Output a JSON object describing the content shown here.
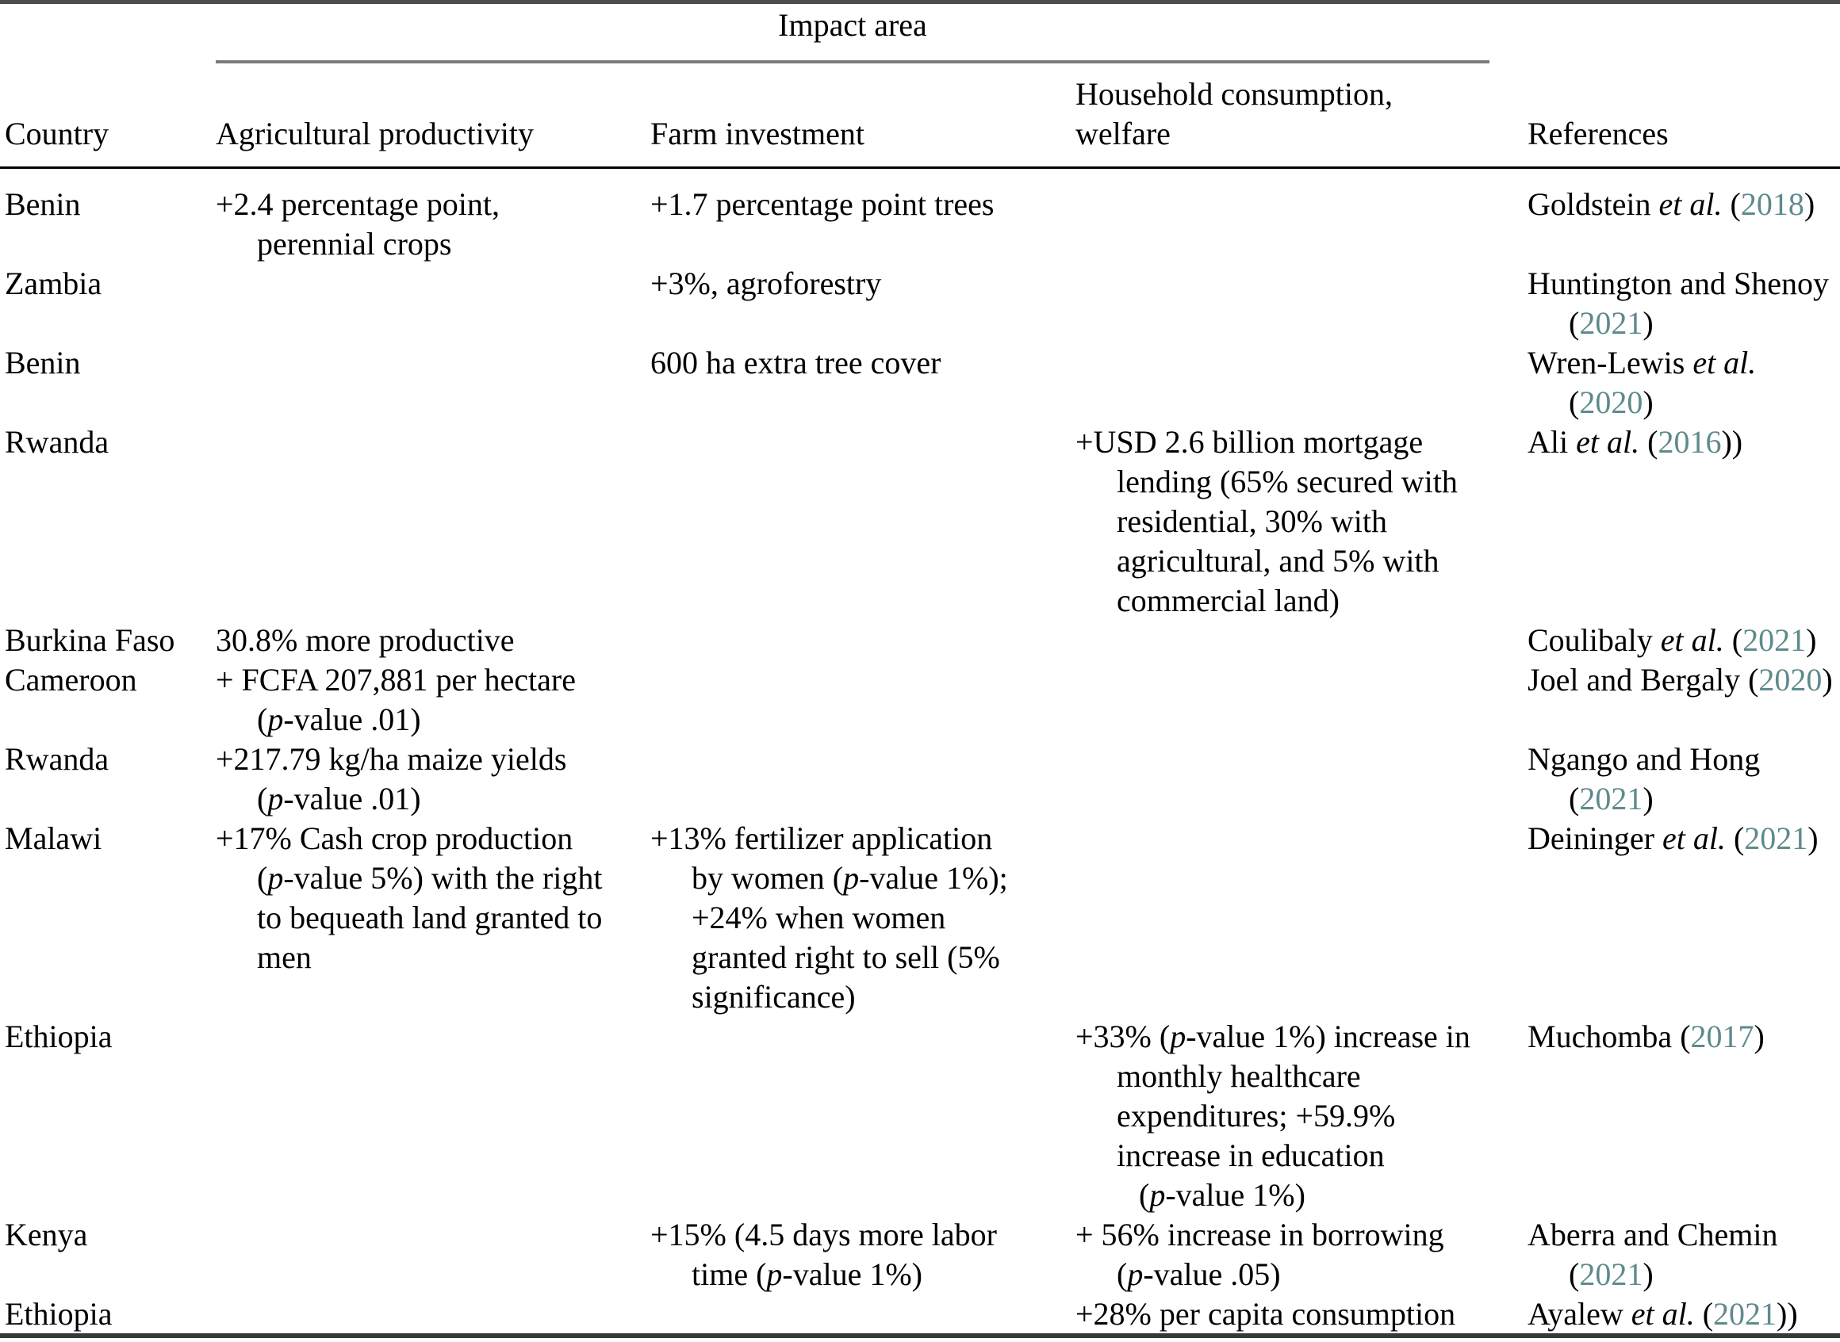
{
  "table": {
    "spanner_label": "Impact area",
    "year_link_color": "#5e8a8d",
    "columns": {
      "country": "Country",
      "agricultural_productivity": "Agricultural productivity",
      "farm_investment": "Farm investment",
      "household_consumption_welfare": "Household consumption,\nwelfare",
      "references": "References"
    },
    "rows": [
      {
        "country": "Benin",
        "agricultural_productivity": [
          {
            "ind": 0,
            "seg": [
              {
                "t": "+2.4 percentage point,"
              }
            ]
          },
          {
            "ind": 1,
            "seg": [
              {
                "t": "perennial crops"
              }
            ]
          }
        ],
        "farm_investment": [
          {
            "ind": 0,
            "seg": [
              {
                "t": "+1.7 percentage point trees"
              }
            ]
          }
        ],
        "household_consumption_welfare": [],
        "references": [
          {
            "ind": 0,
            "seg": [
              {
                "t": "Goldstein "
              },
              {
                "t": "et al.",
                "s": "i"
              },
              {
                "t": " ("
              },
              {
                "t": "2018",
                "s": "y"
              },
              {
                "t": ")"
              }
            ]
          }
        ]
      },
      {
        "country": "Zambia",
        "agricultural_productivity": [],
        "farm_investment": [
          {
            "ind": 0,
            "seg": [
              {
                "t": "+3%, agroforestry"
              }
            ]
          }
        ],
        "household_consumption_welfare": [],
        "references": [
          {
            "ind": 0,
            "seg": [
              {
                "t": "Huntington and Shenoy"
              }
            ]
          },
          {
            "ind": 1,
            "seg": [
              {
                "t": "("
              },
              {
                "t": "2021",
                "s": "y"
              },
              {
                "t": ")"
              }
            ]
          }
        ]
      },
      {
        "country": "Benin",
        "agricultural_productivity": [],
        "farm_investment": [
          {
            "ind": 0,
            "seg": [
              {
                "t": "600 ha extra tree cover"
              }
            ]
          }
        ],
        "household_consumption_welfare": [],
        "references": [
          {
            "ind": 0,
            "seg": [
              {
                "t": "Wren-Lewis "
              },
              {
                "t": "et al.",
                "s": "i"
              }
            ]
          },
          {
            "ind": 1,
            "seg": [
              {
                "t": "("
              },
              {
                "t": "2020",
                "s": "y"
              },
              {
                "t": ")"
              }
            ]
          }
        ]
      },
      {
        "country": "Rwanda",
        "agricultural_productivity": [],
        "farm_investment": [],
        "household_consumption_welfare": [
          {
            "ind": 0,
            "seg": [
              {
                "t": "+USD 2.6 billion mortgage"
              }
            ]
          },
          {
            "ind": 1,
            "seg": [
              {
                "t": "lending (65% secured with"
              }
            ]
          },
          {
            "ind": 1,
            "seg": [
              {
                "t": "residential, 30% with"
              }
            ]
          },
          {
            "ind": 1,
            "seg": [
              {
                "t": "agricultural, and 5% with"
              }
            ]
          },
          {
            "ind": 1,
            "seg": [
              {
                "t": "commercial land)"
              }
            ]
          }
        ],
        "references": [
          {
            "ind": 0,
            "seg": [
              {
                "t": "Ali "
              },
              {
                "t": "et al.",
                "s": "i"
              },
              {
                "t": " ("
              },
              {
                "t": "2016",
                "s": "y"
              },
              {
                "t": "))"
              }
            ]
          }
        ]
      },
      {
        "country": "Burkina Faso",
        "agricultural_productivity": [
          {
            "ind": 0,
            "seg": [
              {
                "t": "30.8% more productive"
              }
            ]
          }
        ],
        "farm_investment": [],
        "household_consumption_welfare": [],
        "references": [
          {
            "ind": 0,
            "seg": [
              {
                "t": "Coulibaly "
              },
              {
                "t": "et al.",
                "s": "i"
              },
              {
                "t": " ("
              },
              {
                "t": "2021",
                "s": "y"
              },
              {
                "t": ")"
              }
            ]
          }
        ]
      },
      {
        "country": "Cameroon",
        "agricultural_productivity": [
          {
            "ind": 0,
            "seg": [
              {
                "t": "+ FCFA 207,881 per hectare"
              }
            ]
          },
          {
            "ind": 1,
            "seg": [
              {
                "t": "("
              },
              {
                "t": "p",
                "s": "i"
              },
              {
                "t": "-value .01)"
              }
            ]
          }
        ],
        "farm_investment": [],
        "household_consumption_welfare": [],
        "references": [
          {
            "ind": 0,
            "seg": [
              {
                "t": "Joel and Bergaly ("
              },
              {
                "t": "2020",
                "s": "y"
              },
              {
                "t": ")"
              }
            ]
          }
        ]
      },
      {
        "country": "Rwanda",
        "agricultural_productivity": [
          {
            "ind": 0,
            "seg": [
              {
                "t": "+217.79 kg/ha maize yields"
              }
            ]
          },
          {
            "ind": 1,
            "seg": [
              {
                "t": "("
              },
              {
                "t": "p",
                "s": "i"
              },
              {
                "t": "-value .01)"
              }
            ]
          }
        ],
        "farm_investment": [],
        "household_consumption_welfare": [],
        "references": [
          {
            "ind": 0,
            "seg": [
              {
                "t": "Ngango and Hong"
              }
            ]
          },
          {
            "ind": 1,
            "seg": [
              {
                "t": "("
              },
              {
                "t": "2021",
                "s": "y"
              },
              {
                "t": ")"
              }
            ]
          }
        ]
      },
      {
        "country": "Malawi",
        "agricultural_productivity": [
          {
            "ind": 0,
            "seg": [
              {
                "t": "+17% Cash crop production"
              }
            ]
          },
          {
            "ind": 1,
            "seg": [
              {
                "t": "("
              },
              {
                "t": "p",
                "s": "i"
              },
              {
                "t": "-value 5%) with the right"
              }
            ]
          },
          {
            "ind": 1,
            "seg": [
              {
                "t": "to bequeath land granted to"
              }
            ]
          },
          {
            "ind": 1,
            "seg": [
              {
                "t": "men"
              }
            ]
          }
        ],
        "farm_investment": [
          {
            "ind": 0,
            "seg": [
              {
                "t": "+13% fertilizer application"
              }
            ]
          },
          {
            "ind": 1,
            "seg": [
              {
                "t": "by women ("
              },
              {
                "t": "p",
                "s": "i"
              },
              {
                "t": "-value 1%);"
              }
            ]
          },
          {
            "ind": 1,
            "seg": [
              {
                "t": "+24% when women"
              }
            ]
          },
          {
            "ind": 1,
            "seg": [
              {
                "t": "granted right to sell (5%"
              }
            ]
          },
          {
            "ind": 1,
            "seg": [
              {
                "t": "significance)"
              }
            ]
          }
        ],
        "household_consumption_welfare": [],
        "references": [
          {
            "ind": 0,
            "seg": [
              {
                "t": "Deininger "
              },
              {
                "t": "et al.",
                "s": "i"
              },
              {
                "t": " ("
              },
              {
                "t": "2021",
                "s": "y"
              },
              {
                "t": ")"
              }
            ]
          }
        ]
      },
      {
        "country": "Ethiopia",
        "agricultural_productivity": [],
        "farm_investment": [],
        "household_consumption_welfare": [
          {
            "ind": 0,
            "seg": [
              {
                "t": "+33% ("
              },
              {
                "t": "p",
                "s": "i"
              },
              {
                "t": "-value 1%) increase in"
              }
            ]
          },
          {
            "ind": 1,
            "seg": [
              {
                "t": "monthly healthcare"
              }
            ]
          },
          {
            "ind": 1,
            "seg": [
              {
                "t": "expenditures; +59.9%"
              }
            ]
          },
          {
            "ind": 1,
            "seg": [
              {
                "t": "increase in education"
              }
            ]
          },
          {
            "ind": 2,
            "seg": [
              {
                "t": "("
              },
              {
                "t": "p",
                "s": "i"
              },
              {
                "t": "-value 1%)"
              }
            ]
          }
        ],
        "references": [
          {
            "ind": 0,
            "seg": [
              {
                "t": "Muchomba ("
              },
              {
                "t": "2017",
                "s": "y"
              },
              {
                "t": ")"
              }
            ]
          }
        ]
      },
      {
        "country": "Kenya",
        "agricultural_productivity": [],
        "farm_investment": [
          {
            "ind": 0,
            "seg": [
              {
                "t": "+15% (4.5 days more labor"
              }
            ]
          },
          {
            "ind": 1,
            "seg": [
              {
                "t": "time ("
              },
              {
                "t": "p",
                "s": "i"
              },
              {
                "t": "-value 1%)"
              }
            ]
          }
        ],
        "household_consumption_welfare": [
          {
            "ind": 0,
            "seg": [
              {
                "t": "+ 56% increase in borrowing"
              }
            ]
          },
          {
            "ind": 1,
            "seg": [
              {
                "t": "("
              },
              {
                "t": "p",
                "s": "i"
              },
              {
                "t": "-value .05)"
              }
            ]
          }
        ],
        "references": [
          {
            "ind": 0,
            "seg": [
              {
                "t": "Aberra and Chemin"
              }
            ]
          },
          {
            "ind": 1,
            "seg": [
              {
                "t": "("
              },
              {
                "t": "2021",
                "s": "y"
              },
              {
                "t": ")"
              }
            ]
          }
        ]
      },
      {
        "country": "Ethiopia",
        "agricultural_productivity": [],
        "farm_investment": [],
        "household_consumption_welfare": [
          {
            "ind": 0,
            "seg": [
              {
                "t": "+28% per capita consumption"
              }
            ]
          }
        ],
        "references": [
          {
            "ind": 0,
            "seg": [
              {
                "t": "Ayalew "
              },
              {
                "t": "et al.",
                "s": "i"
              },
              {
                "t": " ("
              },
              {
                "t": "2021",
                "s": "y"
              },
              {
                "t": "))"
              }
            ]
          }
        ]
      }
    ]
  }
}
